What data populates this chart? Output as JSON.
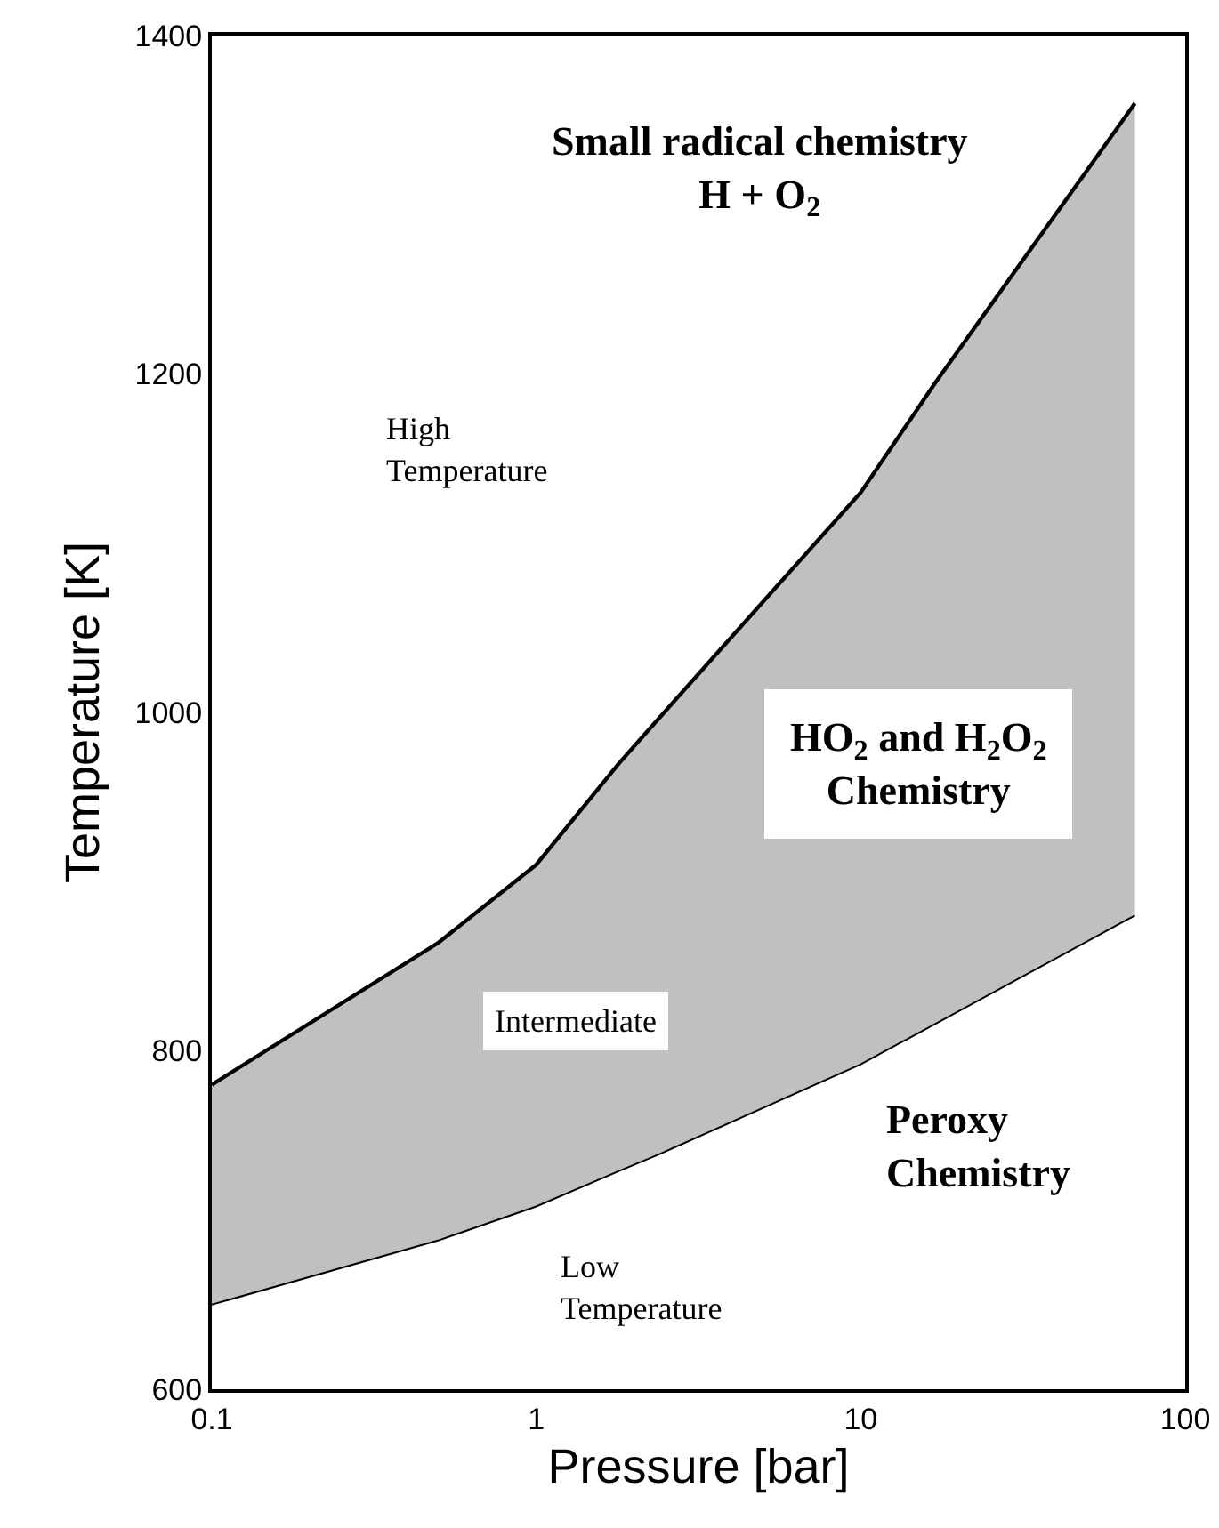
{
  "chart_data": {
    "type": "line",
    "xlabel": "Pressure [bar]",
    "ylabel": "Temperature [K]",
    "log": "x",
    "xlim": [
      0.1,
      100
    ],
    "xticks": [
      0.1,
      1,
      10,
      100
    ],
    "ylim": [
      600,
      1400
    ],
    "yticks": [
      600,
      800,
      1000,
      1200,
      1400
    ],
    "grid": false,
    "legend": false,
    "marker": "none",
    "series": [
      {
        "color": "#000000",
        "x": [
          0.1,
          0.5,
          1,
          1.8,
          2.4,
          10,
          17,
          70
        ],
        "values": [
          650,
          688,
          708,
          729,
          739,
          792,
          816,
          880
        ]
      },
      {
        "type": "area",
        "color": "#c0c0c0",
        "x": [
          0.1,
          0.5,
          1,
          1.8,
          2.4,
          10,
          17,
          70
        ],
        "values": [
          780,
          864,
          910,
          970,
          997,
          1130,
          1195,
          1360
        ]
      }
    ],
    "annotations": [
      "Small radical chemistry\nH + O$_{2}$",
      "High\nTemperature",
      "HO$_{2}$ and H$_{2}$O$_{2}$\nChemistry",
      "Intermediate",
      "Peroxy\nChemistry",
      "Low\nTemperature"
    ]
  }
}
